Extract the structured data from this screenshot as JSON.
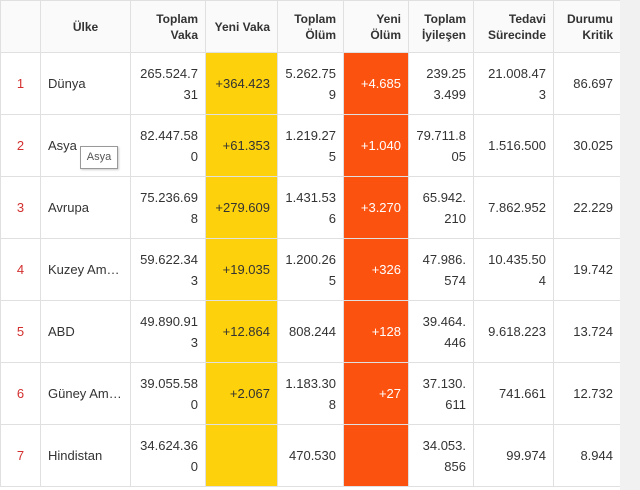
{
  "table": {
    "headers": [
      null,
      "Ülke",
      "Toplam Vaka",
      "Yeni Vaka",
      "Toplam Ölüm",
      "Yeni Ölüm",
      "Toplam İyileşen",
      "Tedavi Sürecinde",
      "Durumu Kritik"
    ],
    "rows": [
      [
        "1",
        "Dünya",
        "265.524.731",
        "+364.423",
        "5.262.759",
        "+4.685",
        "239.253.499",
        "21.008.473",
        "86.697"
      ],
      [
        "2",
        "Asya",
        "82.447.580",
        "+61.353",
        "1.219.275",
        "+1.040",
        "79.711.805",
        "1.516.500",
        "30.025"
      ],
      [
        "3",
        "Avrupa",
        "75.236.698",
        "+279.609",
        "1.431.536",
        "+3.270",
        "65.942.210",
        "7.862.952",
        "22.229"
      ],
      [
        "4",
        "Kuzey Am…",
        "59.622.343",
        "+19.035",
        "1.200.265",
        "+326",
        "47.986.574",
        "10.435.504",
        "19.742"
      ],
      [
        "5",
        "ABD",
        "49.890.913",
        "+12.864",
        "808.244",
        "+128",
        "39.464.446",
        "9.618.223",
        "13.724"
      ],
      [
        "6",
        "Güney Am…",
        "39.055.580",
        "+2.067",
        "1.183.308",
        "+27",
        "37.130.611",
        "741.661",
        "12.732"
      ],
      [
        "7",
        "Hindistan",
        "34.624.360",
        null,
        "470.530",
        null,
        "34.053.856",
        "99.974",
        "8.944"
      ]
    ]
  },
  "tooltip": "Asya"
}
